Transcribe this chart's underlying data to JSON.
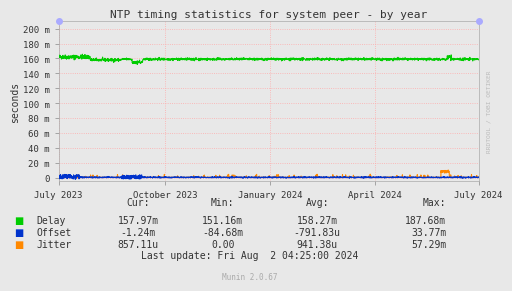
{
  "title": "NTP timing statistics for system peer - by year",
  "ylabel": "seconds",
  "background_color": "#e8e8e8",
  "plot_bg_color": "#e8e8e8",
  "grid_color": "#ffaaaa",
  "ytick_labels": [
    "0",
    "20 m",
    "40 m",
    "60 m",
    "80 m",
    "100 m",
    "120 m",
    "140 m",
    "160 m",
    "180 m",
    "200 m"
  ],
  "ytick_values": [
    0.0,
    0.02,
    0.04,
    0.06,
    0.08,
    0.1,
    0.12,
    0.14,
    0.16,
    0.18,
    0.2
  ],
  "ylim": [
    -0.005,
    0.21
  ],
  "delay_color": "#00cc00",
  "offset_color": "#0033cc",
  "jitter_color": "#ff8800",
  "watermark": "RRDTOOL / TOBI OETIKER",
  "munin_version": "Munin 2.0.67",
  "legend_entries": [
    "Delay",
    "Offset",
    "Jitter"
  ],
  "stats_header": [
    "Cur:",
    "Min:",
    "Avg:",
    "Max:"
  ],
  "stats_delay": [
    "157.97m",
    "151.16m",
    "158.27m",
    "187.68m"
  ],
  "stats_offset": [
    "-1.24m",
    "-84.68m",
    "-791.83u",
    "33.77m"
  ],
  "stats_jitter": [
    "857.11u",
    "0.00",
    "941.38u",
    "57.29m"
  ],
  "last_update": "Last update: Fri Aug  2 04:25:00 2024",
  "xtick_labels": [
    "July 2023",
    "October 2023",
    "January 2024",
    "April 2024",
    "July 2024"
  ],
  "xtick_positions": [
    0.0,
    0.253,
    0.503,
    0.753,
    1.0
  ],
  "marker_color": "#aaaaff"
}
